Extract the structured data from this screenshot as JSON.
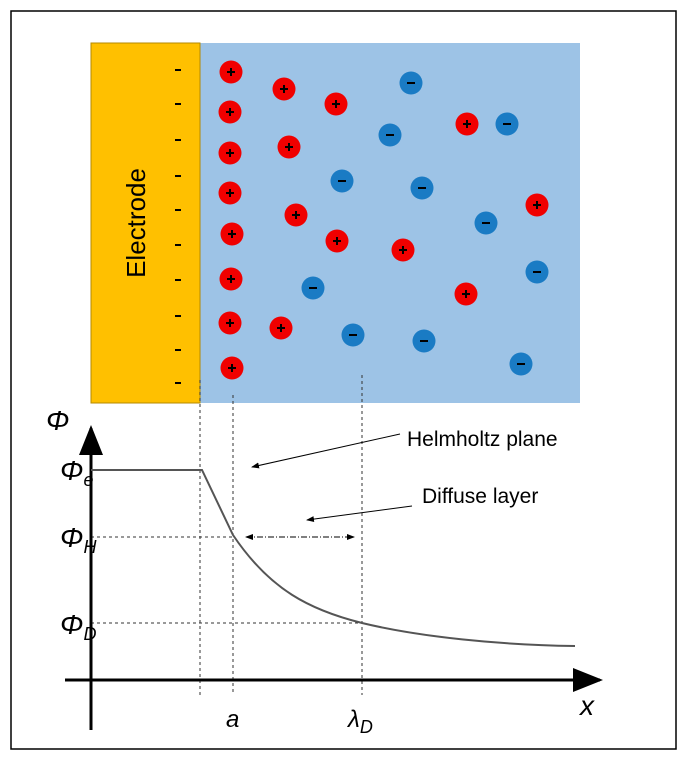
{
  "electrode": {
    "label": "Electrode"
  },
  "axes": {
    "y_label": "Φ",
    "x_label": "x"
  },
  "levels": [
    {
      "symbol": "Φ",
      "subscript": "e"
    },
    {
      "symbol": "Φ",
      "subscript": "H"
    },
    {
      "symbol": "Φ",
      "subscript": "D"
    }
  ],
  "positions": [
    {
      "symbol": "a"
    },
    {
      "symbol": "λ",
      "subscript": "D"
    }
  ],
  "annotations": [
    "Helmholtz plane",
    "Diffuse layer"
  ]
}
